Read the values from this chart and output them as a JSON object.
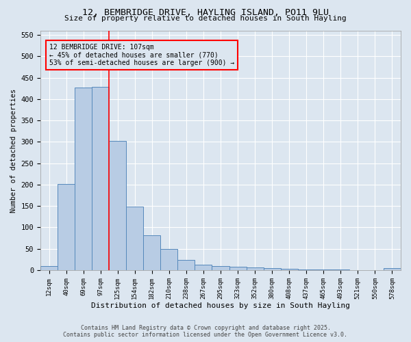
{
  "title_line1": "12, BEMBRIDGE DRIVE, HAYLING ISLAND, PO11 9LU",
  "title_line2": "Size of property relative to detached houses in South Hayling",
  "xlabel": "Distribution of detached houses by size in South Hayling",
  "ylabel": "Number of detached properties",
  "categories": [
    "12sqm",
    "40sqm",
    "69sqm",
    "97sqm",
    "125sqm",
    "154sqm",
    "182sqm",
    "210sqm",
    "238sqm",
    "267sqm",
    "295sqm",
    "323sqm",
    "352sqm",
    "380sqm",
    "408sqm",
    "437sqm",
    "465sqm",
    "493sqm",
    "521sqm",
    "550sqm",
    "578sqm"
  ],
  "values": [
    10,
    202,
    427,
    428,
    303,
    148,
    82,
    50,
    24,
    12,
    10,
    8,
    6,
    4,
    3,
    2,
    1,
    1,
    0,
    0,
    4
  ],
  "bar_color": "#b8cce4",
  "bar_edge_color": "#5588bb",
  "background_color": "#dce6f0",
  "grid_color": "#ffffff",
  "red_line_x": 3.5,
  "annotation_title": "12 BEMBRIDGE DRIVE: 107sqm",
  "annotation_line1": "← 45% of detached houses are smaller (770)",
  "annotation_line2": "53% of semi-detached houses are larger (900) →",
  "ylim": [
    0,
    560
  ],
  "yticks": [
    0,
    50,
    100,
    150,
    200,
    250,
    300,
    350,
    400,
    450,
    500,
    550
  ],
  "footer_line1": "Contains HM Land Registry data © Crown copyright and database right 2025.",
  "footer_line2": "Contains public sector information licensed under the Open Government Licence v3.0."
}
